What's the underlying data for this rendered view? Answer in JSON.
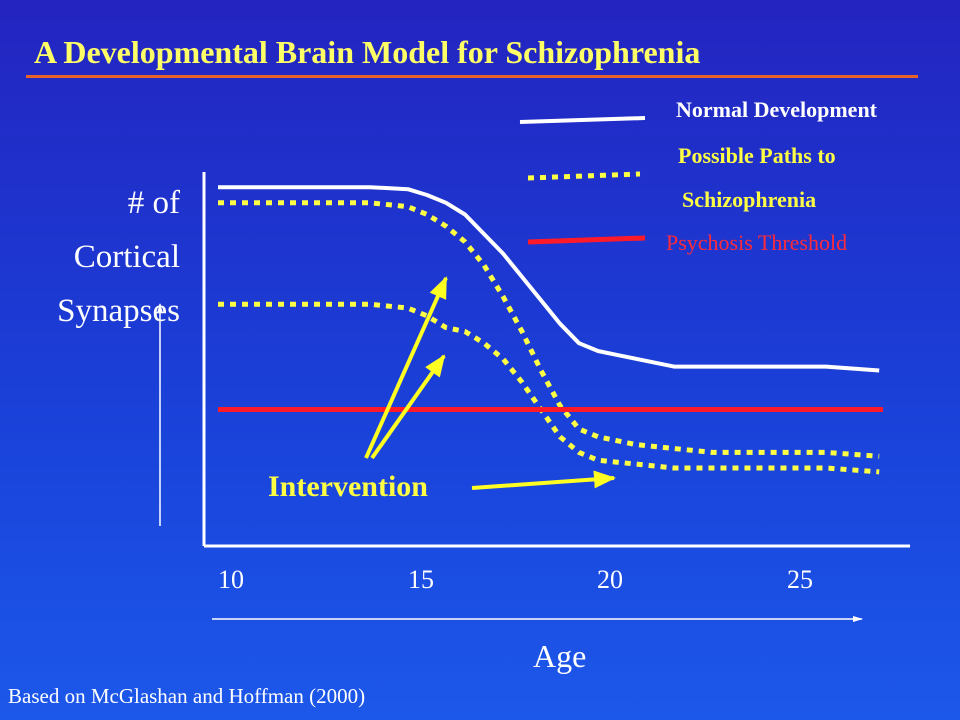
{
  "slide": {
    "title": "A Developmental Brain Model for Schizophrenia",
    "source": "Based on McGlashan and Hoffman (2000)"
  },
  "legend": {
    "normal": "Normal Development",
    "paths_line1": "Possible Paths to",
    "paths_line2": "Schizophrenia",
    "threshold": "Psychosis Threshold"
  },
  "annotation": {
    "intervention": "Intervention"
  },
  "colors": {
    "normal": "#ffffff",
    "paths": "#ffff44",
    "threshold": "#ff1a2a",
    "title": "#ffff66",
    "underline": "#e8622a"
  },
  "chart_data": {
    "type": "line",
    "xlabel": "Age",
    "ylabel_lines": [
      "# of",
      "Cortical",
      "Synapses"
    ],
    "x_ticks": [
      "10",
      "15",
      "20",
      "25"
    ],
    "xlim": [
      10,
      27.5
    ],
    "ylim": [
      0,
      100
    ],
    "grid": false,
    "series": [
      {
        "name": "Normal Development",
        "style": "solid",
        "x": [
          10,
          11,
          12,
          13,
          14,
          15,
          15.5,
          16,
          16.5,
          17,
          17.5,
          18,
          18.5,
          19,
          19.5,
          20,
          20.5,
          21,
          22,
          23,
          24,
          25,
          26,
          27.4
        ],
        "y": [
          92,
          92,
          92,
          92,
          92,
          91.5,
          90,
          88,
          85,
          80,
          75,
          69,
          63,
          57,
          52,
          50,
          49,
          48,
          46,
          46,
          46,
          46,
          46,
          45
        ]
      },
      {
        "name": "Possible Paths to Schizophrenia",
        "style": "dotted",
        "x": [
          10,
          11,
          12,
          13,
          14,
          15,
          15.5,
          16,
          16.5,
          17,
          17.5,
          18,
          18.5,
          19,
          19.5,
          20,
          20.5,
          21,
          22,
          23,
          24,
          25,
          26,
          27.4
        ],
        "y": [
          88,
          88,
          88,
          88,
          88,
          87,
          85,
          82,
          78,
          72,
          64,
          55,
          45,
          36,
          30,
          28,
          27,
          26,
          25,
          24,
          24,
          24,
          24,
          23
        ]
      },
      {
        "name": "Possible Paths to Schizophrenia",
        "style": "dotted",
        "x": [
          10,
          11,
          12,
          13,
          14,
          15,
          15.5,
          16,
          16.5,
          17,
          17.5,
          18,
          18.5,
          19,
          19.5,
          20,
          21,
          22,
          23,
          24,
          25,
          26,
          27.4
        ],
        "y": [
          62,
          62,
          62,
          62,
          62,
          61,
          59,
          56,
          55,
          52,
          48,
          42,
          35,
          28,
          24,
          22,
          21,
          20,
          20,
          20,
          20,
          20,
          19
        ]
      },
      {
        "name": "Psychosis Threshold",
        "style": "solid",
        "x": [
          10,
          27.5
        ],
        "y": [
          35,
          35
        ]
      }
    ]
  }
}
